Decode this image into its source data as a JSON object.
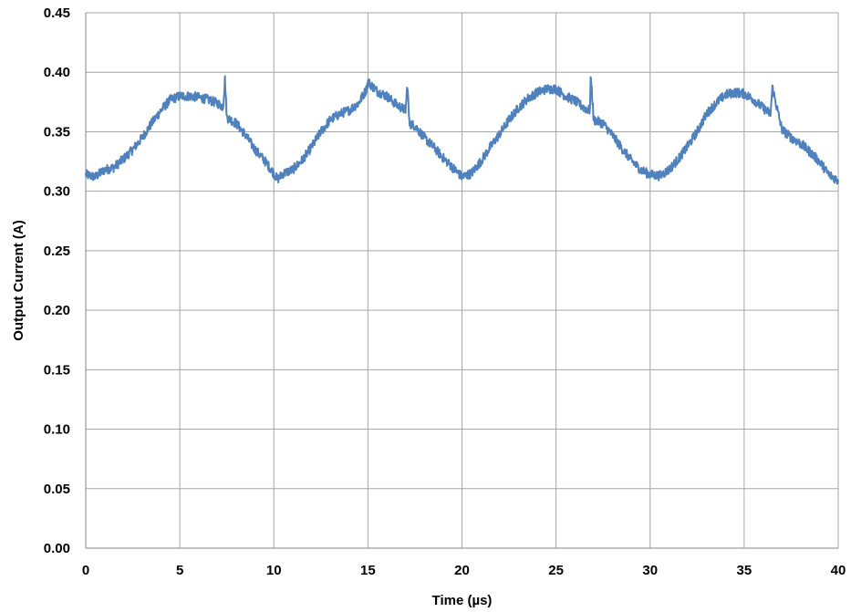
{
  "chart_data": {
    "type": "line",
    "title": "",
    "xlabel": "Time (µs)",
    "ylabel": "Output Current (A)",
    "xlim": [
      0,
      40
    ],
    "ylim": [
      0,
      0.45
    ],
    "x_ticks": [
      "0",
      "5",
      "10",
      "15",
      "20",
      "25",
      "30",
      "35",
      "40"
    ],
    "y_ticks": [
      "0.00",
      "0.05",
      "0.10",
      "0.15",
      "0.20",
      "0.25",
      "0.30",
      "0.35",
      "0.40",
      "0.45"
    ],
    "grid": "on",
    "legend": "none",
    "series": [
      {
        "color": "#4f81bd",
        "x": [
          0,
          0.5,
          1,
          1.5,
          2,
          2.5,
          3,
          3.5,
          4,
          4.5,
          5,
          5.5,
          6,
          6.5,
          7,
          7.3,
          7.4,
          7.5,
          8,
          8.5,
          9,
          9.5,
          10,
          10.2,
          10.5,
          11,
          11.5,
          12,
          12.5,
          13,
          13.5,
          14,
          14.5,
          14.9,
          15,
          15.5,
          16,
          16.5,
          17,
          17.1,
          17.2,
          17.5,
          18,
          18.5,
          19,
          19.5,
          20,
          20.5,
          21,
          21.5,
          22,
          22.5,
          23,
          23.5,
          24,
          24.5,
          25,
          25.5,
          26,
          26.5,
          26.8,
          26.85,
          27,
          27.5,
          28,
          28.5,
          29,
          29.5,
          30,
          30.5,
          31,
          31.5,
          32,
          32.5,
          33,
          33.5,
          34,
          34.5,
          35,
          35.5,
          36,
          36.4,
          36.5,
          37,
          37.5,
          38,
          38.5,
          39,
          39.5,
          40
        ],
        "y": [
          0.314,
          0.312,
          0.318,
          0.32,
          0.327,
          0.335,
          0.345,
          0.357,
          0.368,
          0.377,
          0.38,
          0.38,
          0.379,
          0.377,
          0.374,
          0.371,
          0.394,
          0.362,
          0.357,
          0.347,
          0.335,
          0.326,
          0.315,
          0.31,
          0.315,
          0.318,
          0.326,
          0.337,
          0.35,
          0.36,
          0.365,
          0.368,
          0.374,
          0.385,
          0.392,
          0.384,
          0.38,
          0.373,
          0.368,
          0.39,
          0.357,
          0.355,
          0.345,
          0.337,
          0.328,
          0.32,
          0.312,
          0.315,
          0.325,
          0.337,
          0.348,
          0.36,
          0.37,
          0.378,
          0.383,
          0.386,
          0.386,
          0.38,
          0.376,
          0.37,
          0.368,
          0.398,
          0.36,
          0.357,
          0.347,
          0.336,
          0.326,
          0.318,
          0.314,
          0.313,
          0.318,
          0.327,
          0.338,
          0.35,
          0.365,
          0.374,
          0.381,
          0.383,
          0.382,
          0.377,
          0.37,
          0.365,
          0.387,
          0.352,
          0.345,
          0.34,
          0.333,
          0.325,
          0.314,
          0.309
        ]
      }
    ]
  }
}
